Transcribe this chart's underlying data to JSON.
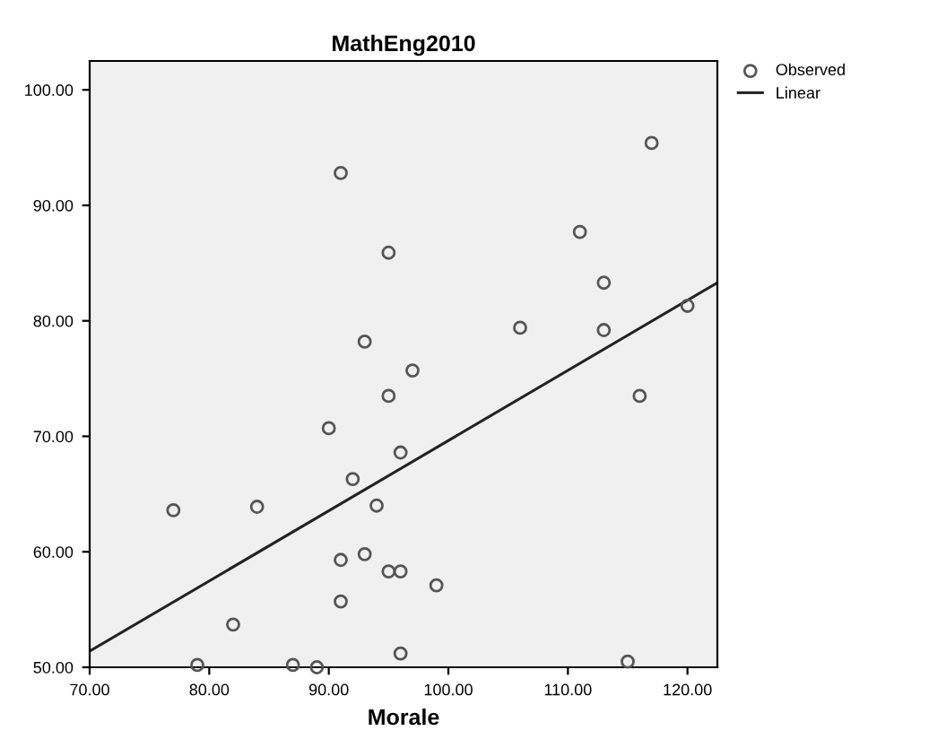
{
  "chart_data": {
    "type": "scatter",
    "title": "MathEng2010",
    "xlabel": "Morale",
    "xlim": [
      70,
      122.5
    ],
    "ylim": [
      50,
      102.5
    ],
    "xticks": [
      {
        "value": 70,
        "label": "70.00"
      },
      {
        "value": 80,
        "label": "80.00"
      },
      {
        "value": 90,
        "label": "90.00"
      },
      {
        "value": 100,
        "label": "100.00"
      },
      {
        "value": 110,
        "label": "110.00"
      },
      {
        "value": 120,
        "label": "120.00"
      }
    ],
    "yticks": [
      {
        "value": 50,
        "label": "50.00"
      },
      {
        "value": 60,
        "label": "60.00"
      },
      {
        "value": 70,
        "label": "70.00"
      },
      {
        "value": 80,
        "label": "80.00"
      },
      {
        "value": 90,
        "label": "90.00"
      },
      {
        "value": 100,
        "label": "100.00"
      }
    ],
    "grid": false,
    "legend": "top right",
    "series": [
      {
        "name": "Observed",
        "marker": "circle",
        "color": "#555555",
        "x": [
          77,
          79,
          82,
          84,
          87,
          89,
          90,
          91,
          91,
          91,
          92,
          93,
          93,
          94,
          95,
          95,
          95,
          96,
          96,
          96,
          97,
          99,
          106,
          111,
          113,
          113,
          115,
          116,
          117,
          120
        ],
        "values": [
          63.6,
          50.2,
          53.7,
          63.9,
          50.2,
          50,
          70.7,
          92.8,
          59.3,
          55.7,
          66.3,
          78.2,
          59.8,
          64,
          85.9,
          73.5,
          58.3,
          68.6,
          58.3,
          51.2,
          75.7,
          57.1,
          79.4,
          87.7,
          83.3,
          79.2,
          50.5,
          73.5,
          95.4,
          81.3
        ]
      },
      {
        "name": "Linear",
        "type": "line",
        "marker": "none",
        "line_style": "solid",
        "color": "#222222",
        "x": [
          70,
          122.5
        ],
        "values": [
          51.4,
          83.3
        ]
      }
    ]
  }
}
